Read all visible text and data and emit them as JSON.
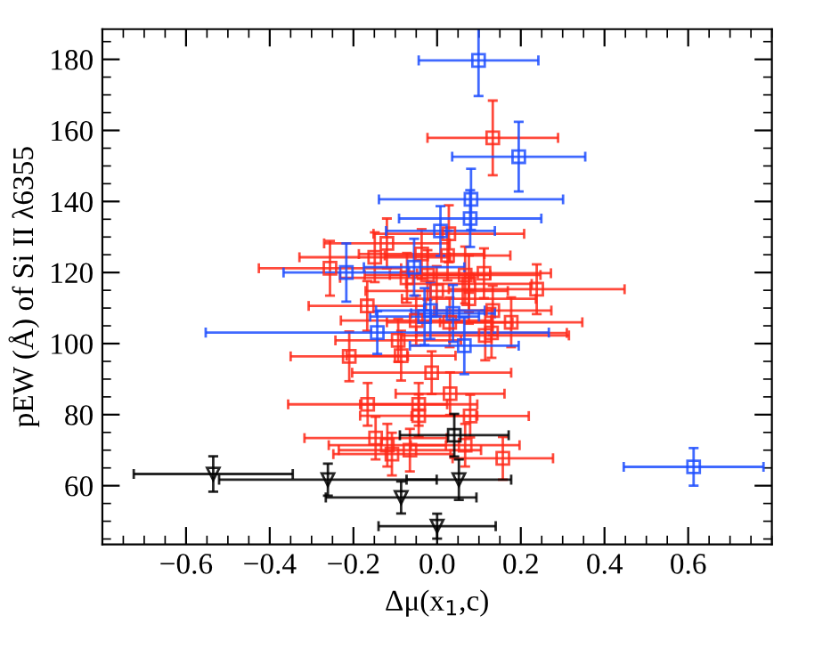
{
  "chart_data": {
    "type": "scatter",
    "xlabel": "Δμ(x$_{1}$,c)",
    "ylabel": "pEW (Å) of Si II λ6355",
    "xlim": [
      -0.8,
      0.8
    ],
    "ylim": [
      43.5,
      188.5
    ],
    "xticks": [
      {
        "value": -0.6,
        "label": "−0.6"
      },
      {
        "value": -0.4,
        "label": "−0.4"
      },
      {
        "value": -0.2,
        "label": "−0.2"
      },
      {
        "value": 0.0,
        "label": "0.0"
      },
      {
        "value": 0.2,
        "label": "0.2"
      },
      {
        "value": 0.4,
        "label": "0.4"
      },
      {
        "value": 0.6,
        "label": "0.6"
      }
    ],
    "yticks": [
      60,
      80,
      100,
      120,
      140,
      160,
      180
    ],
    "grid": false,
    "legend": false,
    "series": [
      {
        "color": "#ff2a1a",
        "marker": "square",
        "x": [
          0.133,
          0.028,
          -0.12,
          -0.149,
          -0.037,
          0.025,
          -0.256,
          -0.072,
          -0.023,
          0.067,
          0.112,
          0.076,
          0.238,
          -0.001,
          0.076,
          -0.167,
          0.133,
          -0.05,
          0.03,
          0.177,
          0.115,
          0.13,
          -0.093,
          -0.21,
          -0.086,
          -0.013,
          0.031,
          -0.166,
          -0.044,
          -0.044,
          0.079,
          -0.147,
          -0.119,
          -0.108,
          -0.065,
          0.067,
          0.157
        ],
        "values": [
          157.9,
          130.9,
          128.2,
          124.3,
          125.2,
          124.8,
          121.2,
          118.5,
          119.3,
          119.3,
          119.8,
          116.8,
          115.3,
          114.8,
          112.6,
          110.6,
          109.3,
          106.5,
          106,
          106,
          102.3,
          103,
          100.9,
          96.4,
          96.6,
          91.8,
          85.9,
          82.9,
          82.9,
          79.7,
          79.6,
          73.4,
          71.4,
          68.9,
          70,
          71.4,
          67.7
        ],
        "xerrors": [
          0.156,
          0.18,
          0.15,
          0.18,
          0.15,
          0.15,
          0.17,
          0.16,
          0.15,
          0.18,
          0.16,
          0.15,
          0.21,
          0.17,
          0.16,
          0.14,
          0.14,
          0.18,
          0.15,
          0.17,
          0.2,
          0.18,
          0.15,
          0.14,
          0.13,
          0.19,
          0.13,
          0.19,
          0.14,
          0.14,
          0.14,
          0.17,
          0.14,
          0.14,
          0.17,
          0.13,
          0.12
        ],
        "errors": [
          10.5,
          8,
          7,
          7,
          7,
          7,
          7.7,
          7,
          7,
          8,
          7,
          8,
          7,
          7,
          7,
          7,
          7,
          7,
          7,
          7,
          7,
          7,
          6,
          7,
          7,
          6,
          6,
          6,
          6,
          6,
          6,
          6,
          6,
          6,
          6,
          6,
          6
        ]
      },
      {
        "color": "#1f4fff",
        "marker": "square",
        "x": [
          0.099,
          0.195,
          0.081,
          0.079,
          0.008,
          -0.217,
          -0.055,
          -0.143,
          -0.03,
          -0.016,
          0.038,
          0.065,
          0.613
        ],
        "values": [
          179.7,
          152.6,
          140.6,
          135.2,
          131.7,
          120,
          121.5,
          103.1,
          107.6,
          109.3,
          108.5,
          99.4,
          65.3
        ],
        "xerrors": [
          0.143,
          0.159,
          0.22,
          0.17,
          0.13,
          0.15,
          0.12,
          0.41,
          0.13,
          0.13,
          0.1,
          0.13,
          0.167
        ],
        "errors": [
          10,
          9.8,
          8.6,
          8,
          7,
          8.2,
          8,
          6,
          8,
          8,
          8,
          8,
          5.3
        ]
      },
      {
        "color": "#000000",
        "marker": "square",
        "x": [
          0.041
        ],
        "values": [
          74.2
        ],
        "xerrors": [
          0.13
        ],
        "errors": [
          6
        ]
      },
      {
        "color": "#000000",
        "marker": "triangle",
        "x": [
          -0.535,
          -0.261,
          0.052,
          -0.086,
          0.0
        ],
        "values": [
          63.3,
          61.7,
          61.7,
          56.7,
          48.6
        ],
        "xerrors": [
          0.19,
          0.26,
          0.125,
          0.18,
          0.14
        ],
        "errors": [
          5,
          4.5,
          5.7,
          4.5,
          3.5
        ]
      }
    ]
  }
}
